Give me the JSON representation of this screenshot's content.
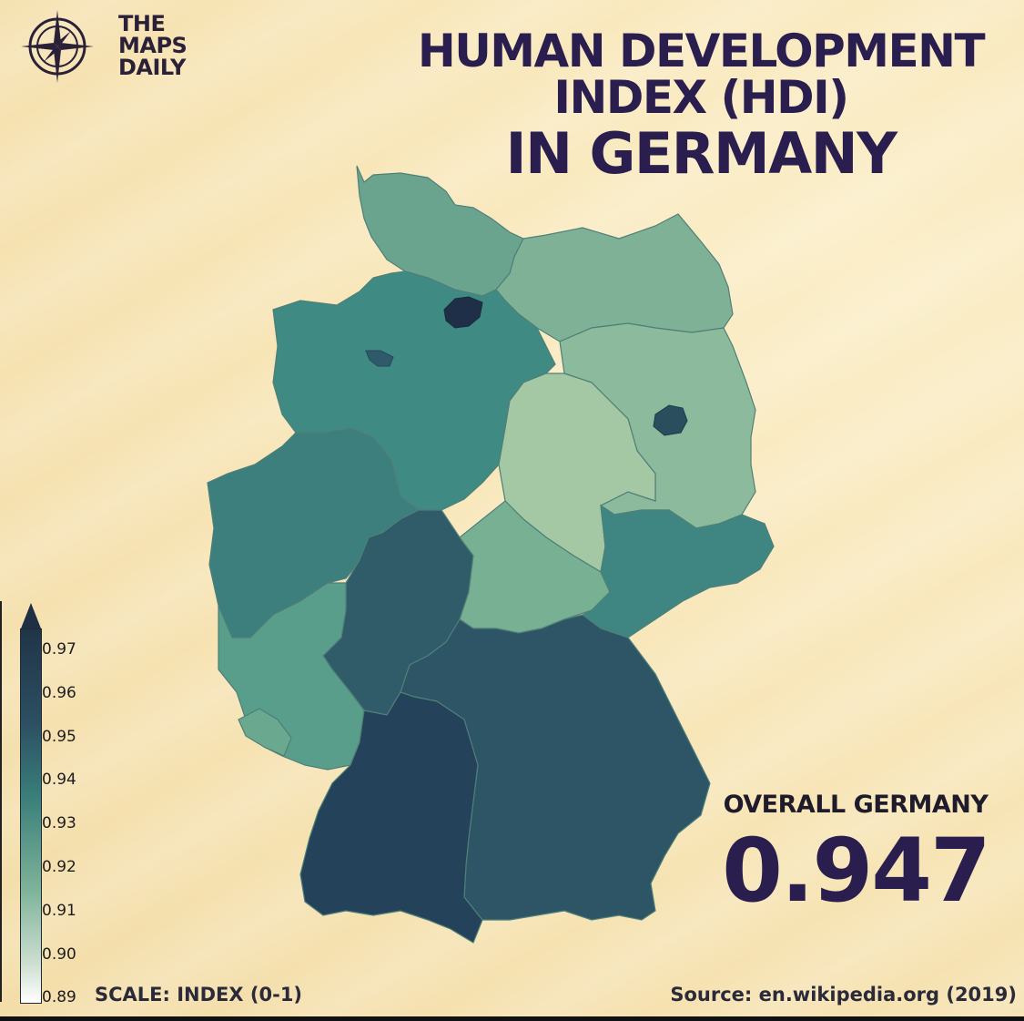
{
  "brand": {
    "line1": "THE",
    "line2": "MAPS",
    "line3": "DAILY",
    "logo_icon": "compass-icon"
  },
  "title": {
    "line1": "HUMAN DEVELOPMENT",
    "line2": "INDEX (HDI)",
    "line3": "IN GERMANY"
  },
  "overall": {
    "label": "OVERALL GERMANY",
    "value": "0.947"
  },
  "legend": {
    "ticks": [
      "0.97",
      "0.96",
      "0.95",
      "0.94",
      "0.93",
      "0.92",
      "0.91",
      "0.90",
      "0.89"
    ],
    "min": 0.89,
    "max": 0.975,
    "colors": {
      "dark": "#203548",
      "mid": "#3a7f7a",
      "light": "#cfe0d2",
      "white": "#ffffff"
    }
  },
  "scale_label": "SCALE: INDEX (0-1)",
  "source": "Source: en.wikipedia.org (2019)",
  "regions": {
    "schleswig-holstein": {
      "color": "#6aa48f"
    },
    "hamburg": {
      "color": "#1f2f48"
    },
    "mecklenburg-vorpommern": {
      "color": "#7fb196"
    },
    "lower-saxony": {
      "color": "#3f8a83"
    },
    "bremen": {
      "color": "#2f5a6a"
    },
    "brandenburg": {
      "color": "#8cba9c"
    },
    "berlin": {
      "color": "#2a4e5e"
    },
    "saxony-anhalt": {
      "color": "#a4c8a3"
    },
    "north-rhine-westphalia": {
      "color": "#3c7f7c"
    },
    "hesse": {
      "color": "#305c6a"
    },
    "thuringia": {
      "color": "#78b093"
    },
    "saxony": {
      "color": "#3f8682"
    },
    "rhineland-palatinate": {
      "color": "#589e8b"
    },
    "saarland": {
      "color": "#6aa890"
    },
    "bavaria": {
      "color": "#2d5566"
    },
    "baden-wuerttemberg": {
      "color": "#24435a"
    }
  }
}
